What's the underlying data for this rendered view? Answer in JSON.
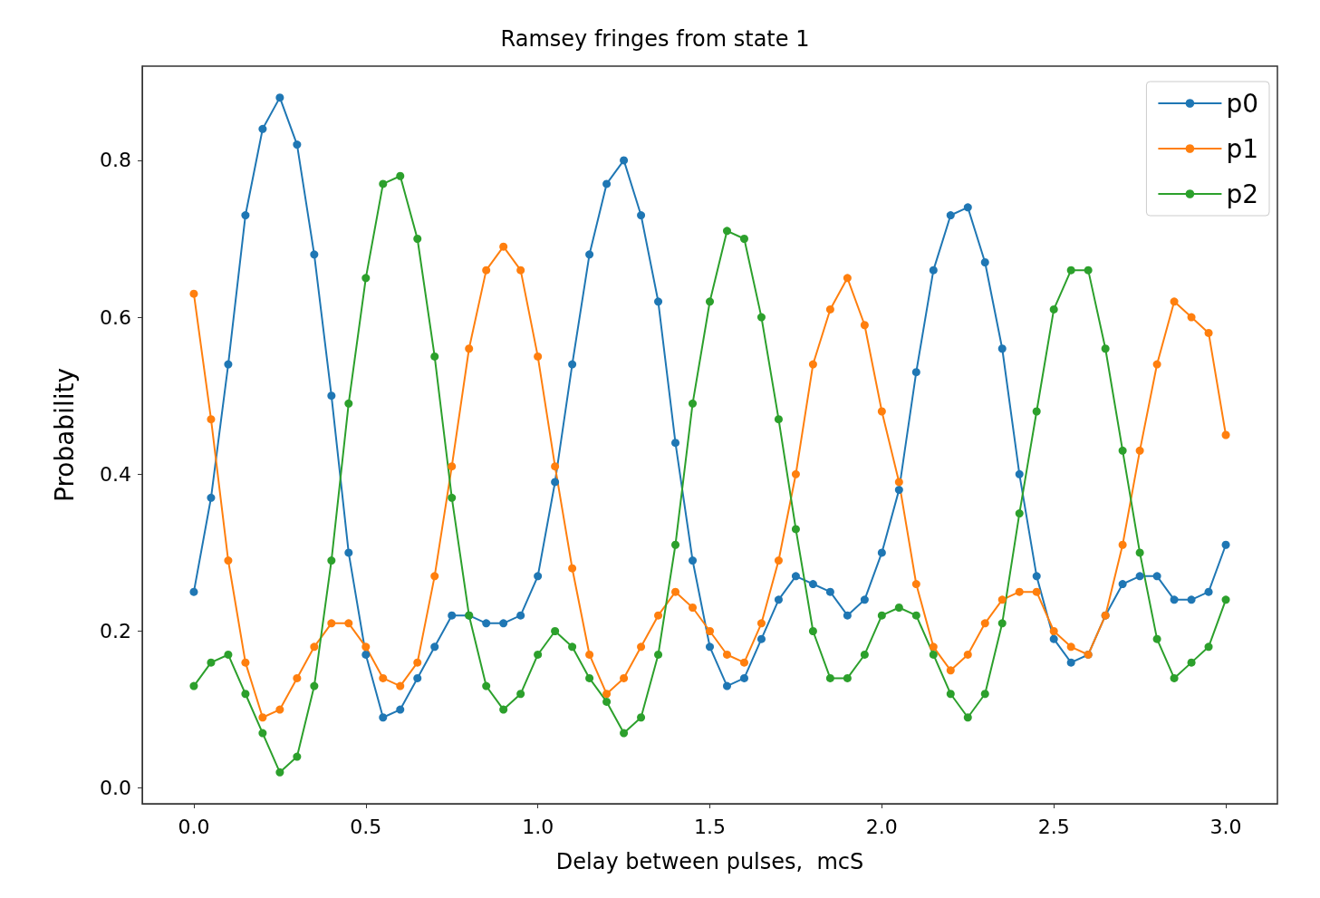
{
  "chart_data": {
    "type": "line",
    "title": "Ramsey fringes from state 1",
    "xlabel": "Delay between pulses,  mcS",
    "ylabel": "Probability",
    "x": [
      0,
      0.05,
      0.1,
      0.15,
      0.2,
      0.25,
      0.3,
      0.35,
      0.4,
      0.45,
      0.5,
      0.55,
      0.6,
      0.65,
      0.7,
      0.75,
      0.8,
      0.85,
      0.9,
      0.95,
      1,
      1.05,
      1.1,
      1.15,
      1.2,
      1.25,
      1.3,
      1.35,
      1.4,
      1.45,
      1.5,
      1.55,
      1.6,
      1.65,
      1.7,
      1.75,
      1.8,
      1.85,
      1.9,
      1.95,
      2,
      2.05,
      2.1,
      2.15,
      2.2,
      2.25,
      2.3,
      2.35,
      2.4,
      2.45,
      2.5,
      2.55,
      2.6,
      2.65,
      2.7,
      2.75,
      2.8,
      2.85,
      2.9,
      2.95,
      3
    ],
    "series": [
      {
        "name": "p0",
        "color": "#1f77b4",
        "values": [
          0.25,
          0.37,
          0.54,
          0.73,
          0.84,
          0.88,
          0.82,
          0.68,
          0.5,
          0.3,
          0.17,
          0.09,
          0.1,
          0.14,
          0.18,
          0.22,
          0.22,
          0.21,
          0.21,
          0.22,
          0.27,
          0.39,
          0.54,
          0.68,
          0.77,
          0.8,
          0.73,
          0.62,
          0.44,
          0.29,
          0.18,
          0.13,
          0.14,
          0.19,
          0.24,
          0.27,
          0.26,
          0.25,
          0.22,
          0.24,
          0.3,
          0.38,
          0.53,
          0.66,
          0.73,
          0.74,
          0.67,
          0.56,
          0.4,
          0.27,
          0.19,
          0.16,
          0.17,
          0.22,
          0.26,
          0.27,
          0.27,
          0.24,
          0.24,
          0.25,
          0.31
        ]
      },
      {
        "name": "p1",
        "color": "#ff7f0e",
        "values": [
          0.63,
          0.47,
          0.29,
          0.16,
          0.09,
          0.1,
          0.14,
          0.18,
          0.21,
          0.21,
          0.18,
          0.14,
          0.13,
          0.16,
          0.27,
          0.41,
          0.56,
          0.66,
          0.69,
          0.66,
          0.55,
          0.41,
          0.28,
          0.17,
          0.12,
          0.14,
          0.18,
          0.22,
          0.25,
          0.23,
          0.2,
          0.17,
          0.16,
          0.21,
          0.29,
          0.4,
          0.54,
          0.61,
          0.65,
          0.59,
          0.48,
          0.39,
          0.26,
          0.18,
          0.15,
          0.17,
          0.21,
          0.24,
          0.25,
          0.25,
          0.2,
          0.18,
          0.17,
          0.22,
          0.31,
          0.43,
          0.54,
          0.62,
          0.6,
          0.58,
          0.45
        ]
      },
      {
        "name": "p2",
        "color": "#2ca02c",
        "values": [
          0.13,
          0.16,
          0.17,
          0.12,
          0.07,
          0.02,
          0.04,
          0.13,
          0.29,
          0.49,
          0.65,
          0.77,
          0.78,
          0.7,
          0.55,
          0.37,
          0.22,
          0.13,
          0.1,
          0.12,
          0.17,
          0.2,
          0.18,
          0.14,
          0.11,
          0.07,
          0.09,
          0.17,
          0.31,
          0.49,
          0.62,
          0.71,
          0.7,
          0.6,
          0.47,
          0.33,
          0.2,
          0.14,
          0.14,
          0.17,
          0.22,
          0.23,
          0.22,
          0.17,
          0.12,
          0.09,
          0.12,
          0.21,
          0.35,
          0.48,
          0.61,
          0.66,
          0.66,
          0.56,
          0.43,
          0.3,
          0.19,
          0.14,
          0.16,
          0.18,
          0.24
        ]
      }
    ],
    "xlim": [
      -0.15,
      3.15
    ],
    "xticks": [
      {
        "value": 0,
        "label": "0.0"
      },
      {
        "value": 0.5,
        "label": "0.5"
      },
      {
        "value": 1,
        "label": "1.0"
      },
      {
        "value": 1.5,
        "label": "1.5"
      },
      {
        "value": 2,
        "label": "2.0"
      },
      {
        "value": 2.5,
        "label": "2.5"
      },
      {
        "value": 3,
        "label": "3.0"
      }
    ],
    "ylim": [
      -0.02,
      0.92
    ],
    "yticks": [
      {
        "value": 0,
        "label": "0.0"
      },
      {
        "value": 0.2,
        "label": "0.2"
      },
      {
        "value": 0.4,
        "label": "0.4"
      },
      {
        "value": 0.6,
        "label": "0.6"
      },
      {
        "value": 0.8,
        "label": "0.8"
      }
    ],
    "grid": false,
    "legend": "top right",
    "marker": "circle",
    "line_style": "solid"
  }
}
